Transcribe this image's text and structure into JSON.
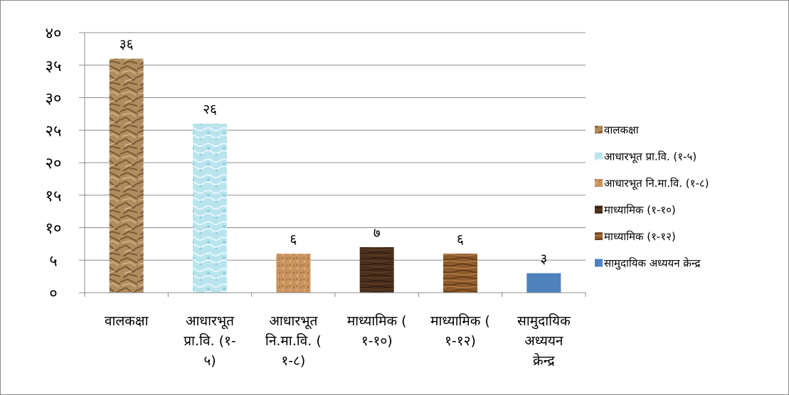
{
  "chart_data": {
    "type": "bar",
    "y_tick_labels": [
      "०",
      "५",
      "१०",
      "१५",
      "२०",
      "२५",
      "३०",
      "३५",
      "४०"
    ],
    "ylim": [
      0,
      40
    ],
    "y_tick_step": 5,
    "grid": true,
    "legend_position": "right",
    "categories": [
      {
        "lines": [
          "वालकक्षा"
        ]
      },
      {
        "lines": [
          "आधारभूत",
          "प्रा.वि. (१-",
          "५)"
        ]
      },
      {
        "lines": [
          "आधारभूत",
          "नि.मा.वि. (",
          "१-८)"
        ]
      },
      {
        "lines": [
          "माध्यामिक (",
          "१-१०)"
        ]
      },
      {
        "lines": [
          "माध्यामिक (",
          "१-१२)"
        ]
      },
      {
        "lines": [
          "सामुदायिक",
          "अध्ययन",
          "क्रेन्द्र"
        ]
      }
    ],
    "series": [
      {
        "name": "वालकक्षा",
        "value": 36,
        "label": "३६",
        "color": "#b08c5e"
      },
      {
        "name": "आधारभूत प्रा.वि. (१-५)",
        "value": 26,
        "label": "२६",
        "color": "#b9e4ee"
      },
      {
        "name": "आधारभूत नि.मा.वि. (१-८)",
        "value": 6,
        "label": "६",
        "color": "#c9935f"
      },
      {
        "name": "माध्यामिक (१-१०)",
        "value": 7,
        "label": "७",
        "color": "#4a2f1c"
      },
      {
        "name": "माध्यामिक (१-१२)",
        "value": 6,
        "label": "६",
        "color": "#8e5a2c"
      },
      {
        "name": "सामुदायिक अध्ययन क्रेन्द्र",
        "value": 3,
        "label": "३",
        "color": "#4f81bd"
      }
    ]
  }
}
